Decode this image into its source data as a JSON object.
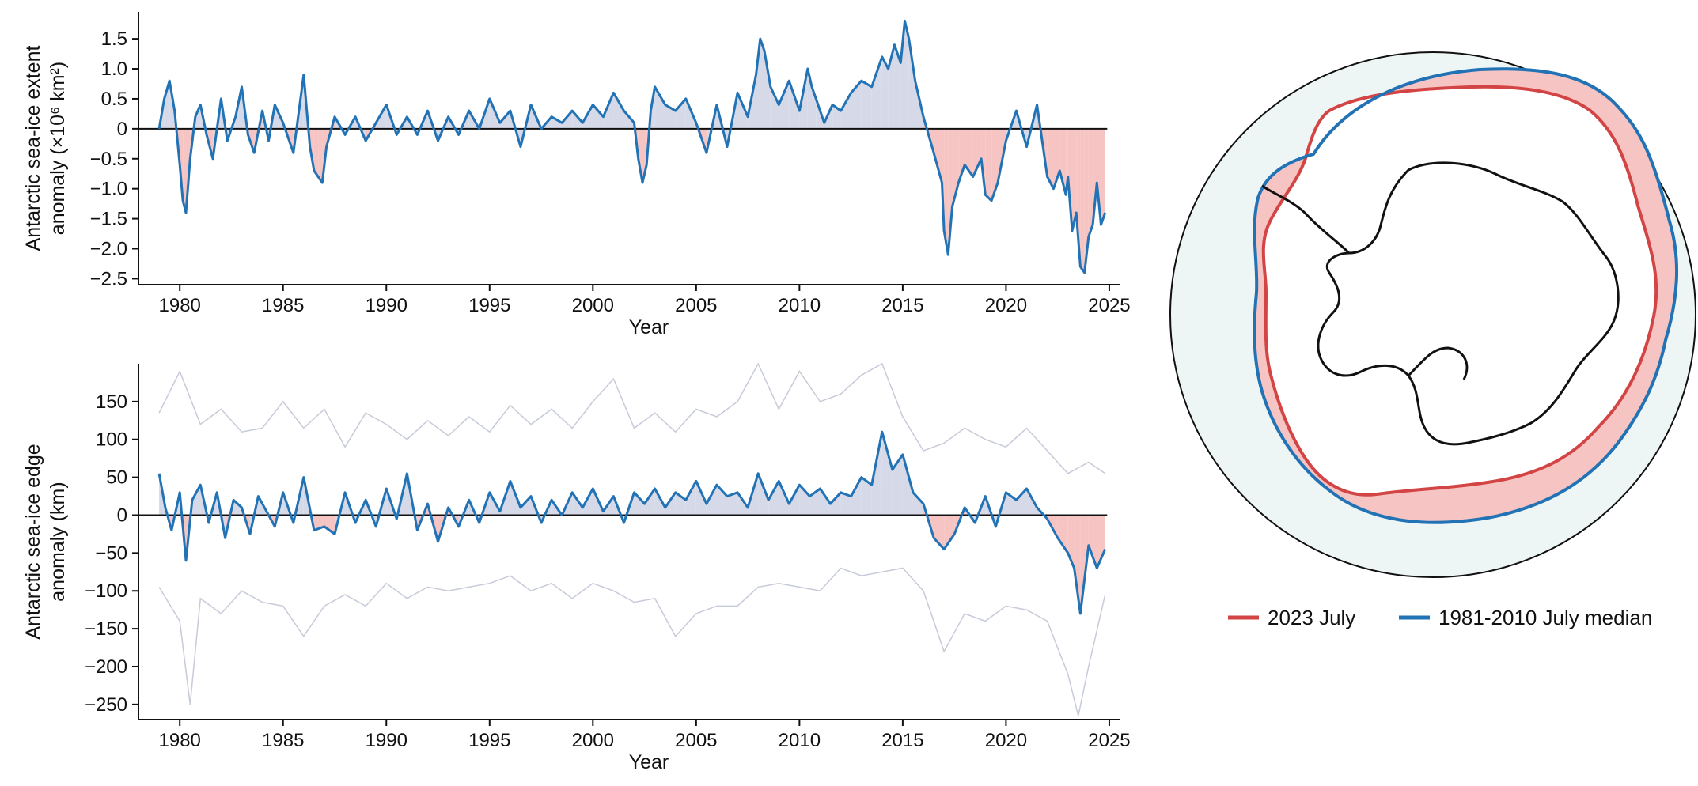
{
  "colors": {
    "line": "#2273b5",
    "positive_fill": "#d6d9e8",
    "negative_fill": "#f6c4c2",
    "range_line": "#c7cad8",
    "red_contour": "#d34545",
    "map_ocean": "#eef5f5",
    "land": "#111111"
  },
  "chart_data": [
    {
      "id": "extent",
      "type": "line",
      "xlabel": "Year",
      "ylabel_lines": [
        "Antarctic sea-ice extent",
        "anomaly (×10⁶ km²)"
      ],
      "xlim": [
        1978,
        2025.5
      ],
      "ylim": [
        -2.6,
        1.95
      ],
      "x_ticks": [
        1980,
        1985,
        1990,
        1995,
        2000,
        2005,
        2010,
        2015,
        2020,
        2025
      ],
      "y_ticks": [
        1.5,
        1.0,
        0.5,
        0,
        -0.5,
        -1.0,
        -1.5,
        -2.0,
        -2.5
      ],
      "y_tick_labels": [
        "1.5",
        "1.0",
        "0.5",
        "0",
        "−0.5",
        "−1.0",
        "−1.5",
        "−2.0",
        "−2.5"
      ],
      "series": [
        {
          "x": [
            1979.0,
            1979.25,
            1979.5,
            1979.75,
            1980.0,
            1980.15,
            1980.3,
            1980.5,
            1980.75,
            1981.0,
            1981.3,
            1981.6,
            1982.0,
            1982.3,
            1982.7,
            1983.0,
            1983.3,
            1983.6,
            1984.0,
            1984.3,
            1984.6,
            1985.0,
            1985.5,
            1986.0,
            1986.3,
            1986.5,
            1986.7,
            1986.9,
            1987.1,
            1987.5,
            1988.0,
            1988.5,
            1989.0,
            1989.5,
            1990.0,
            1990.5,
            1991.0,
            1991.5,
            1992.0,
            1992.5,
            1993.0,
            1993.5,
            1994.0,
            1994.5,
            1995.0,
            1995.5,
            1996.0,
            1996.5,
            1997.0,
            1997.5,
            1998.0,
            1998.5,
            1999.0,
            1999.5,
            2000.0,
            2000.5,
            2001.0,
            2001.5,
            2002.0,
            2002.2,
            2002.4,
            2002.6,
            2002.8,
            2003.0,
            2003.5,
            2004.0,
            2004.5,
            2005.0,
            2005.5,
            2006.0,
            2006.5,
            2007.0,
            2007.5,
            2007.9,
            2008.1,
            2008.3,
            2008.6,
            2009.0,
            2009.5,
            2010.0,
            2010.4,
            2010.6,
            2010.8,
            2011.2,
            2011.6,
            2012.0,
            2012.5,
            2013.0,
            2013.5,
            2014.0,
            2014.3,
            2014.6,
            2014.9,
            2015.1,
            2015.3,
            2015.6,
            2016.0,
            2016.5,
            2016.9,
            2017.0,
            2017.2,
            2017.4,
            2017.7,
            2018.0,
            2018.4,
            2018.8,
            2019.0,
            2019.3,
            2019.6,
            2020.0,
            2020.5,
            2021.0,
            2021.5,
            2022.0,
            2022.3,
            2022.6,
            2022.9,
            2023.0,
            2023.2,
            2023.4,
            2023.6,
            2023.8,
            2024.0,
            2024.2,
            2024.4,
            2024.6,
            2024.8
          ],
          "y": [
            0.0,
            0.5,
            0.8,
            0.3,
            -0.6,
            -1.2,
            -1.4,
            -0.5,
            0.2,
            0.4,
            -0.1,
            -0.5,
            0.5,
            -0.2,
            0.2,
            0.7,
            -0.1,
            -0.4,
            0.3,
            -0.2,
            0.4,
            0.1,
            -0.4,
            0.9,
            -0.3,
            -0.7,
            -0.8,
            -0.9,
            -0.3,
            0.2,
            -0.1,
            0.2,
            -0.2,
            0.1,
            0.4,
            -0.1,
            0.2,
            -0.1,
            0.3,
            -0.2,
            0.2,
            -0.1,
            0.3,
            0.0,
            0.5,
            0.1,
            0.3,
            -0.3,
            0.4,
            0.0,
            0.2,
            0.1,
            0.3,
            0.1,
            0.4,
            0.2,
            0.6,
            0.3,
            0.1,
            -0.5,
            -0.9,
            -0.6,
            0.3,
            0.7,
            0.4,
            0.3,
            0.5,
            0.1,
            -0.4,
            0.4,
            -0.3,
            0.6,
            0.2,
            0.9,
            1.5,
            1.3,
            0.7,
            0.4,
            0.8,
            0.3,
            1.0,
            0.7,
            0.5,
            0.1,
            0.4,
            0.3,
            0.6,
            0.8,
            0.7,
            1.2,
            1.0,
            1.4,
            1.1,
            1.8,
            1.5,
            0.8,
            0.2,
            -0.4,
            -0.9,
            -1.7,
            -2.1,
            -1.3,
            -0.9,
            -0.6,
            -0.8,
            -0.5,
            -1.1,
            -1.2,
            -0.9,
            -0.2,
            0.3,
            -0.3,
            0.4,
            -0.8,
            -1.0,
            -0.7,
            -1.1,
            -0.8,
            -1.7,
            -1.4,
            -2.3,
            -2.4,
            -1.8,
            -1.6,
            -0.9,
            -1.6,
            -1.4
          ]
        }
      ]
    },
    {
      "id": "edge",
      "type": "line",
      "xlabel": "Year",
      "ylabel_lines": [
        "Antarctic sea-ice edge",
        "anomaly (km)"
      ],
      "xlim": [
        1978,
        2025.5
      ],
      "ylim": [
        -270,
        200
      ],
      "x_ticks": [
        1980,
        1985,
        1990,
        1995,
        2000,
        2005,
        2010,
        2015,
        2020,
        2025
      ],
      "y_ticks": [
        150,
        100,
        50,
        0,
        -50,
        -100,
        -150,
        -200,
        -250
      ],
      "y_tick_labels": [
        "150",
        "100",
        "50",
        "0",
        "−50",
        "−100",
        "−150",
        "−200",
        "−250"
      ],
      "series": [
        {
          "x": [
            1979.0,
            1979.3,
            1979.6,
            1980.0,
            1980.3,
            1980.6,
            1981.0,
            1981.4,
            1981.8,
            1982.2,
            1982.6,
            1983.0,
            1983.4,
            1983.8,
            1984.2,
            1984.6,
            1985.0,
            1985.5,
            1986.0,
            1986.5,
            1987.0,
            1987.5,
            1988.0,
            1988.5,
            1989.0,
            1989.5,
            1990.0,
            1990.5,
            1991.0,
            1991.5,
            1992.0,
            1992.5,
            1993.0,
            1993.5,
            1994.0,
            1994.5,
            1995.0,
            1995.5,
            1996.0,
            1996.5,
            1997.0,
            1997.5,
            1998.0,
            1998.5,
            1999.0,
            1999.5,
            2000.0,
            2000.5,
            2001.0,
            2001.5,
            2002.0,
            2002.5,
            2003.0,
            2003.5,
            2004.0,
            2004.5,
            2005.0,
            2005.5,
            2006.0,
            2006.5,
            2007.0,
            2007.5,
            2008.0,
            2008.5,
            2009.0,
            2009.5,
            2010.0,
            2010.5,
            2011.0,
            2011.5,
            2012.0,
            2012.5,
            2013.0,
            2013.5,
            2014.0,
            2014.5,
            2015.0,
            2015.5,
            2016.0,
            2016.5,
            2017.0,
            2017.5,
            2018.0,
            2018.5,
            2019.0,
            2019.5,
            2020.0,
            2020.5,
            2021.0,
            2021.5,
            2022.0,
            2022.5,
            2023.0,
            2023.3,
            2023.6,
            2024.0,
            2024.4,
            2024.8
          ],
          "y": [
            55,
            10,
            -20,
            30,
            -60,
            20,
            40,
            -10,
            30,
            -30,
            20,
            10,
            -25,
            25,
            5,
            -15,
            30,
            -10,
            50,
            -20,
            -15,
            -25,
            30,
            -10,
            20,
            -15,
            35,
            -5,
            55,
            -20,
            15,
            -35,
            10,
            -15,
            20,
            -10,
            30,
            5,
            45,
            10,
            25,
            -10,
            20,
            0,
            30,
            10,
            35,
            5,
            25,
            -10,
            30,
            15,
            35,
            10,
            30,
            20,
            45,
            15,
            40,
            25,
            30,
            10,
            55,
            20,
            45,
            15,
            40,
            25,
            35,
            15,
            30,
            25,
            50,
            40,
            110,
            60,
            80,
            30,
            15,
            -30,
            -45,
            -25,
            10,
            -10,
            25,
            -15,
            30,
            20,
            35,
            10,
            -5,
            -30,
            -50,
            -70,
            -130,
            -40,
            -70,
            -45
          ]
        },
        {
          "name": "upper",
          "x": [
            1979.0,
            1980.0,
            1981.0,
            1982.0,
            1983.0,
            1984.0,
            1985.0,
            1986.0,
            1987.0,
            1988.0,
            1989.0,
            1990.0,
            1991.0,
            1992.0,
            1993.0,
            1994.0,
            1995.0,
            1996.0,
            1997.0,
            1998.0,
            1999.0,
            2000.0,
            2001.0,
            2002.0,
            2003.0,
            2004.0,
            2005.0,
            2006.0,
            2007.0,
            2008.0,
            2009.0,
            2010.0,
            2011.0,
            2012.0,
            2013.0,
            2014.0,
            2015.0,
            2016.0,
            2017.0,
            2018.0,
            2019.0,
            2020.0,
            2021.0,
            2022.0,
            2023.0,
            2024.0,
            2024.8
          ],
          "y": [
            135,
            190,
            120,
            140,
            110,
            115,
            150,
            115,
            140,
            90,
            135,
            120,
            100,
            125,
            105,
            130,
            110,
            145,
            120,
            140,
            115,
            150,
            180,
            115,
            135,
            110,
            140,
            130,
            150,
            200,
            140,
            190,
            150,
            160,
            185,
            200,
            130,
            85,
            95,
            115,
            100,
            90,
            115,
            85,
            55,
            70,
            55
          ]
        },
        {
          "name": "lower",
          "x": [
            1979.0,
            1980.0,
            1980.5,
            1981.0,
            1982.0,
            1983.0,
            1984.0,
            1985.0,
            1986.0,
            1987.0,
            1988.0,
            1989.0,
            1990.0,
            1991.0,
            1992.0,
            1993.0,
            1994.0,
            1995.0,
            1996.0,
            1997.0,
            1998.0,
            1999.0,
            2000.0,
            2001.0,
            2002.0,
            2003.0,
            2004.0,
            2005.0,
            2006.0,
            2007.0,
            2008.0,
            2009.0,
            2010.0,
            2011.0,
            2012.0,
            2013.0,
            2014.0,
            2015.0,
            2016.0,
            2017.0,
            2018.0,
            2019.0,
            2020.0,
            2021.0,
            2022.0,
            2023.0,
            2023.5,
            2024.0,
            2024.8
          ],
          "y": [
            -95,
            -140,
            -250,
            -110,
            -130,
            -100,
            -115,
            -120,
            -160,
            -120,
            -105,
            -120,
            -90,
            -110,
            -95,
            -100,
            -95,
            -90,
            -80,
            -100,
            -90,
            -110,
            -90,
            -100,
            -115,
            -110,
            -160,
            -130,
            -120,
            -120,
            -95,
            -90,
            -95,
            -100,
            -70,
            -80,
            -75,
            -70,
            -100,
            -180,
            -130,
            -140,
            -120,
            -125,
            -140,
            -210,
            -265,
            -200,
            -105
          ]
        }
      ]
    }
  ],
  "legend": {
    "red_label": "2023 July",
    "blue_label": "1981-2010 July median"
  }
}
